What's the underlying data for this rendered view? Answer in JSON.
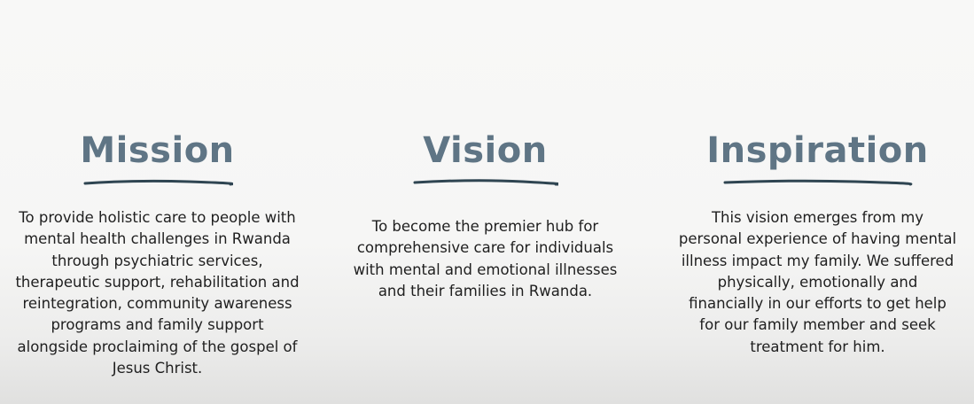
{
  "mission": {
    "heading": "Mission",
    "lines": [
      "To provide holistic care to people with",
      "mental health challenges in Rwanda",
      "through psychiatric services,",
      "therapeutic support, rehabilitation and",
      "reintegration, community awareness",
      "programs and family support",
      "alongside proclaiming of the gospel of",
      "Jesus Christ."
    ]
  },
  "vision": {
    "heading": "Vision",
    "lines": [
      "To become the premier hub for",
      "comprehensive care for individuals",
      "with mental and emotional illnesses",
      "and their families in Rwanda."
    ]
  },
  "inspiration": {
    "heading": "Inspiration",
    "lines": [
      "This vision emerges from my",
      "personal experience of having mental",
      "illness impact my family.  We suffered",
      "physically, emotionally and",
      "financially in our efforts to get help",
      "for our family member and seek",
      "treatment for him."
    ]
  },
  "colors": {
    "heading": "#5f7585",
    "underline": "#2f4552",
    "text": "#1f1f1f",
    "background": "#f6f6f5"
  }
}
